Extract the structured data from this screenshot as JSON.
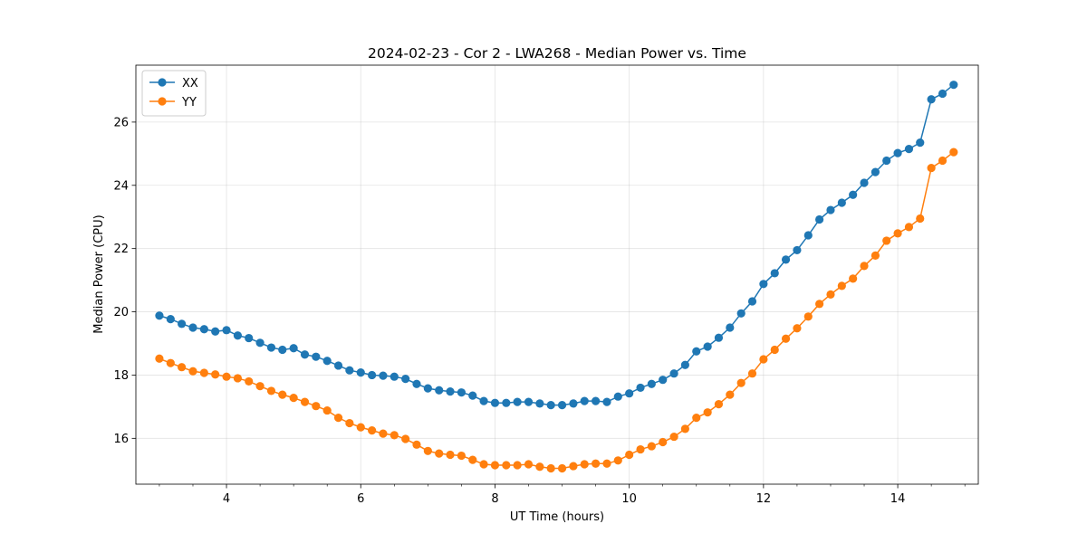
{
  "chart_data": {
    "type": "line",
    "title": "2024-02-23 - Cor 2 - LWA268 - Median Power vs. Time",
    "xlabel": "UT Time (hours)",
    "ylabel": "Median Power (CPU)",
    "xlim": [
      2.65,
      15.2
    ],
    "ylim": [
      14.55,
      27.8
    ],
    "grid": true,
    "legend_position": "top-left",
    "x_ticks": [
      4,
      6,
      8,
      10,
      12,
      14
    ],
    "y_ticks": [
      16,
      18,
      20,
      22,
      24,
      26
    ],
    "x": [
      3.0,
      3.167,
      3.333,
      3.5,
      3.667,
      3.833,
      4.0,
      4.167,
      4.333,
      4.5,
      4.667,
      4.833,
      5.0,
      5.167,
      5.333,
      5.5,
      5.667,
      5.833,
      6.0,
      6.167,
      6.333,
      6.5,
      6.667,
      6.833,
      7.0,
      7.167,
      7.333,
      7.5,
      7.667,
      7.833,
      8.0,
      8.167,
      8.333,
      8.5,
      8.667,
      8.833,
      9.0,
      9.167,
      9.333,
      9.5,
      9.667,
      9.833,
      10.0,
      10.167,
      10.333,
      10.5,
      10.667,
      10.833,
      11.0,
      11.167,
      11.333,
      11.5,
      11.667,
      11.833,
      12.0,
      12.167,
      12.333,
      12.5,
      12.667,
      12.833,
      13.0,
      13.167,
      13.333,
      13.5,
      13.667,
      13.833,
      14.0,
      14.167,
      14.333,
      14.5,
      14.667,
      14.833
    ],
    "series": [
      {
        "name": "XX",
        "color": "#1f77b4",
        "values": [
          19.88,
          19.77,
          19.62,
          19.5,
          19.45,
          19.38,
          19.42,
          19.25,
          19.17,
          19.02,
          18.87,
          18.8,
          18.85,
          18.65,
          18.58,
          18.45,
          18.3,
          18.15,
          18.08,
          18.0,
          17.98,
          17.95,
          17.88,
          17.72,
          17.58,
          17.52,
          17.48,
          17.45,
          17.35,
          17.18,
          17.12,
          17.12,
          17.15,
          17.15,
          17.1,
          17.05,
          17.05,
          17.1,
          17.18,
          17.18,
          17.15,
          17.32,
          17.42,
          17.6,
          17.72,
          17.85,
          18.05,
          18.32,
          18.75,
          18.9,
          19.18,
          19.5,
          19.95,
          20.33,
          20.88,
          21.22,
          21.65,
          21.95,
          22.42,
          22.92,
          23.22,
          23.45,
          23.7,
          24.08,
          24.42,
          24.78,
          25.02,
          25.15,
          25.35,
          26.72,
          26.9,
          27.18
        ]
      },
      {
        "name": "YY",
        "color": "#ff7f0e",
        "values": [
          18.52,
          18.38,
          18.25,
          18.12,
          18.07,
          18.02,
          17.95,
          17.9,
          17.8,
          17.65,
          17.5,
          17.38,
          17.28,
          17.15,
          17.02,
          16.88,
          16.65,
          16.48,
          16.35,
          16.25,
          16.15,
          16.1,
          15.98,
          15.8,
          15.6,
          15.52,
          15.48,
          15.45,
          15.32,
          15.18,
          15.15,
          15.15,
          15.15,
          15.18,
          15.1,
          15.05,
          15.05,
          15.12,
          15.18,
          15.2,
          15.2,
          15.3,
          15.48,
          15.65,
          15.75,
          15.88,
          16.05,
          16.3,
          16.65,
          16.82,
          17.08,
          17.38,
          17.75,
          18.05,
          18.5,
          18.8,
          19.15,
          19.48,
          19.85,
          20.25,
          20.55,
          20.82,
          21.05,
          21.45,
          21.78,
          22.25,
          22.48,
          22.68,
          22.95,
          24.55,
          24.78,
          25.05
        ]
      }
    ]
  }
}
